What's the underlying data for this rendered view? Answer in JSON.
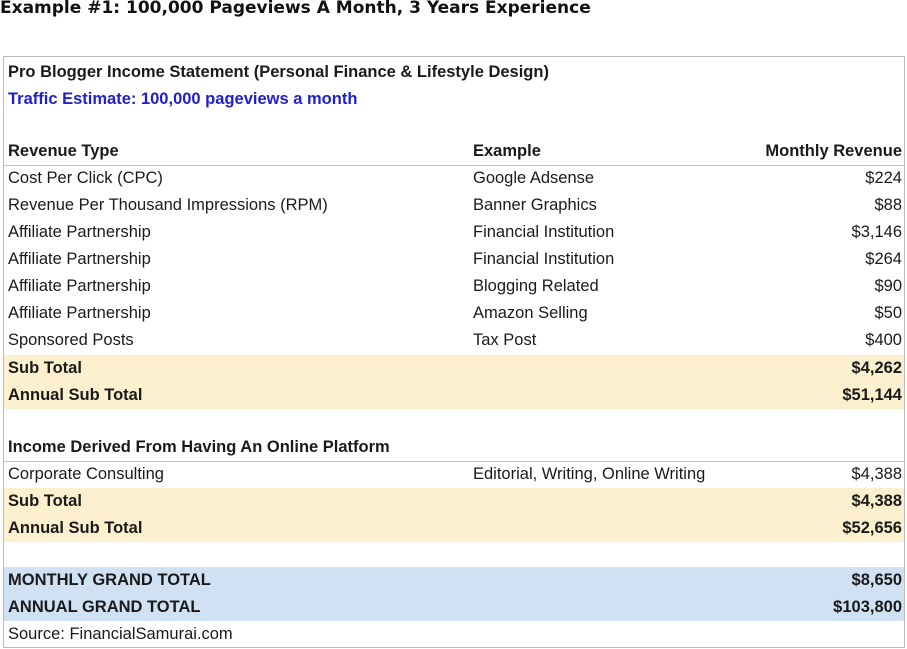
{
  "heading": "Example #1: 100,000 Pageviews A Month, 3 Years Experience",
  "statement": {
    "title": "Pro Blogger Income Statement (Personal Finance & Lifestyle Design)",
    "traffic": "Traffic Estimate: 100,000 pageviews a month",
    "columns": {
      "type": "Revenue Type",
      "example": "Example",
      "revenue": "Monthly Revenue"
    },
    "revenue_rows": [
      {
        "type": "Cost Per Click (CPC)",
        "example": "Google Adsense",
        "revenue": "$224"
      },
      {
        "type": "Revenue Per Thousand Impressions (RPM)",
        "example": "Banner Graphics",
        "revenue": "$88"
      },
      {
        "type": "Affiliate Partnership",
        "example": "Financial Institution",
        "revenue": "$3,146"
      },
      {
        "type": "Affiliate Partnership",
        "example": "Financial Institution",
        "revenue": "$264"
      },
      {
        "type": "Affiliate Partnership",
        "example": "Blogging Related",
        "revenue": "$90"
      },
      {
        "type": "Affiliate Partnership",
        "example": "Amazon Selling",
        "revenue": "$50"
      },
      {
        "type": "Sponsored Posts",
        "example": "Tax Post",
        "revenue": "$400"
      }
    ],
    "subtotal_1": {
      "label": "Sub Total",
      "value": "$4,262"
    },
    "annual_1": {
      "label": "Annual Sub Total",
      "value": "$51,144"
    },
    "platform_heading": "Income Derived From Having An Online Platform",
    "platform_rows": [
      {
        "type": "Corporate Consulting",
        "example": "Editorial, Writing, Online Writing",
        "revenue": "$4,388"
      }
    ],
    "subtotal_2": {
      "label": "Sub Total",
      "value": "$4,388"
    },
    "annual_2": {
      "label": "Annual Sub Total",
      "value": "$52,656"
    },
    "monthly_grand": {
      "label": "MONTHLY GRAND TOTAL",
      "value": "$8,650"
    },
    "annual_grand": {
      "label": "ANNUAL GRAND TOTAL",
      "value": "$103,800"
    },
    "source": "Source: FinancialSamurai.com"
  }
}
